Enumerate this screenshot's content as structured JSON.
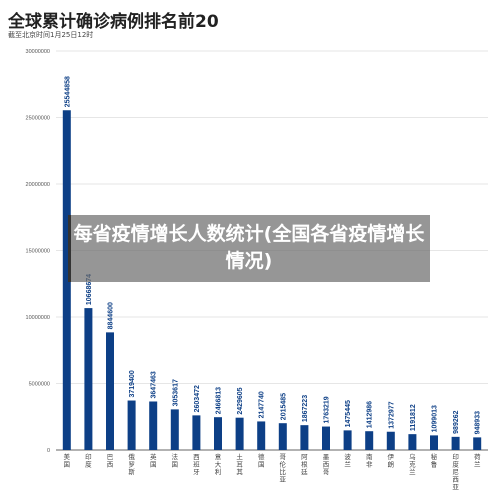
{
  "header": {
    "title": "全球累计确诊病例排名前20",
    "subtitle": "截至北京时间1月25日12时"
  },
  "overlay": {
    "text": "每省疫情增长人数统计(全国各省疫情增长情况)"
  },
  "colors": {
    "bar": "#0d3f86",
    "grid": "#e6e6e6",
    "axis": "#666666"
  },
  "chart_data": {
    "type": "bar",
    "title": "全球累计确诊病例排名前20",
    "subtitle": "截至北京时间1月25日12时",
    "xlabel": "",
    "ylabel": "",
    "ylim": [
      0,
      30000000
    ],
    "yticks": [
      0,
      5000000,
      10000000,
      15000000,
      20000000,
      25000000,
      30000000
    ],
    "ytick_labels": [
      "0",
      "5000000",
      "10000000",
      "15000000",
      "20000000",
      "25000000",
      "30000000"
    ],
    "grid": true,
    "categories": [
      "美国",
      "印度",
      "巴西",
      "俄罗斯",
      "英国",
      "法国",
      "西班牙",
      "意大利",
      "土耳其",
      "德国",
      "哥伦比亚",
      "阿根廷",
      "墨西哥",
      "波兰",
      "南非",
      "伊朗",
      "乌克兰",
      "秘鲁",
      "印度尼西亚",
      "荷兰"
    ],
    "values": [
      25544858,
      10668674,
      8844600,
      3719400,
      3647463,
      3053617,
      2603472,
      2466813,
      2429605,
      2147740,
      2015485,
      1867223,
      1763219,
      1475445,
      1412986,
      1372977,
      1191812,
      1099013,
      989262,
      948933
    ],
    "value_labels": [
      "25544858",
      "10668674",
      "8844600",
      "3719400",
      "3647463",
      "3053617",
      "2603472",
      "2466813",
      "2429605",
      "2147740",
      "2015485",
      "1867223",
      "1763219",
      "1475445",
      "1412986",
      "1372977",
      "1191812",
      "1099013",
      "989262",
      "948933"
    ]
  }
}
